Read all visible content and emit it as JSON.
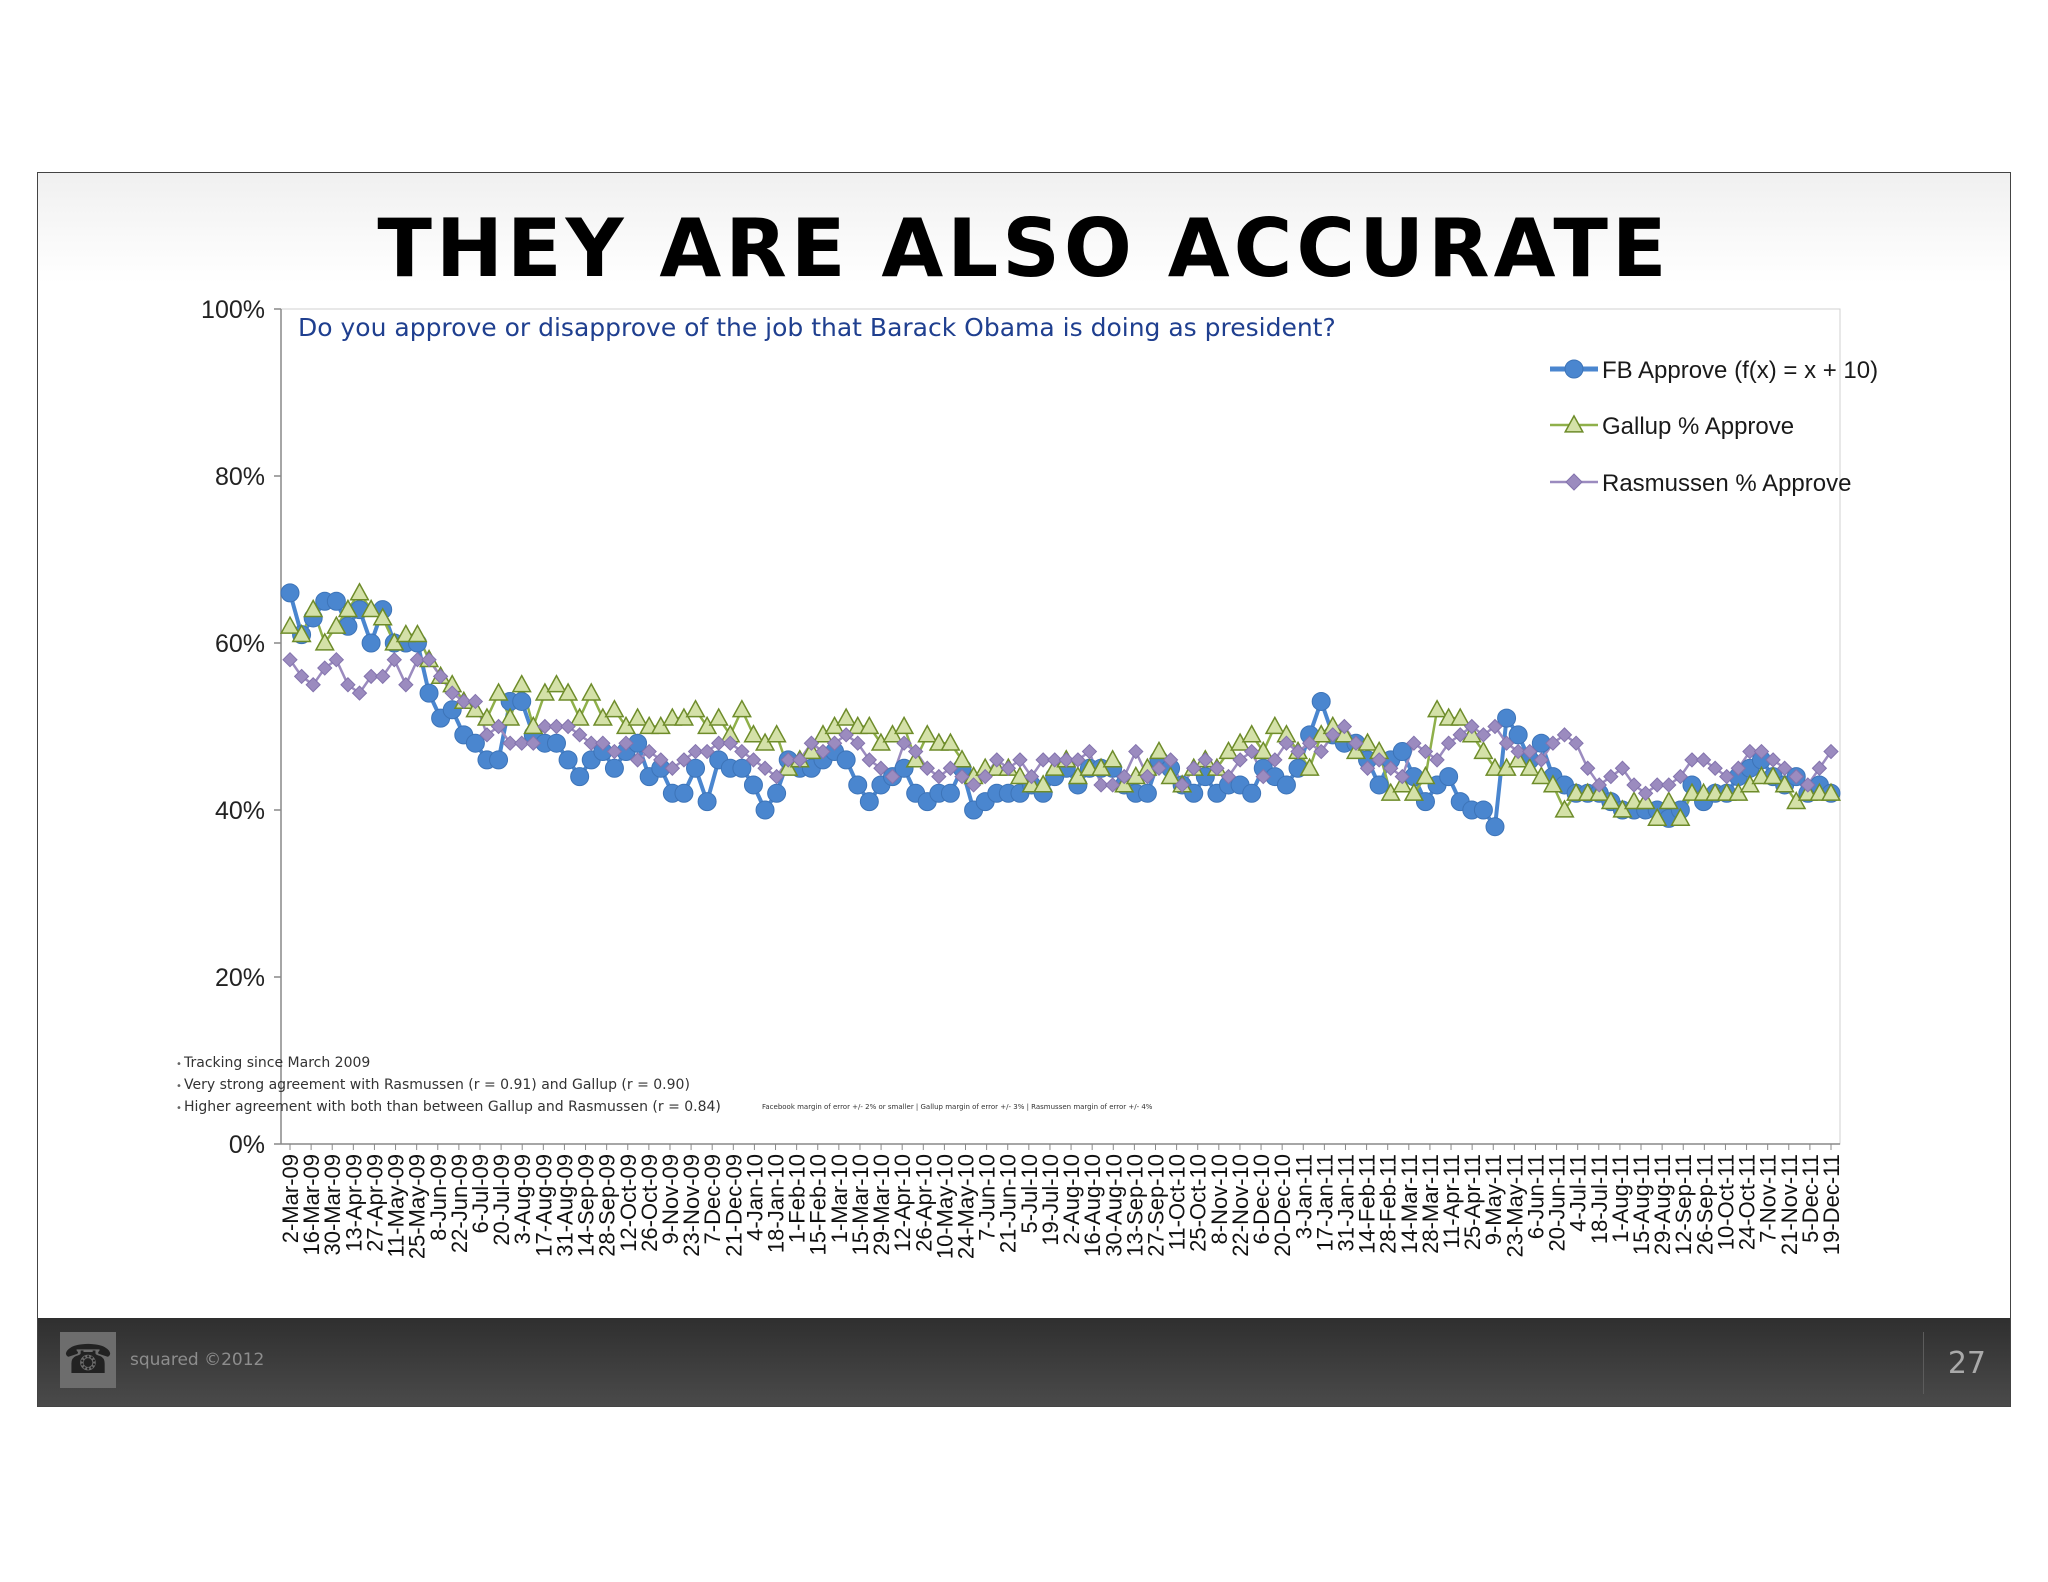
{
  "slide": {
    "title": "THEY ARE ALSO ACCURATE",
    "footer": {
      "logo_icon": "telephone-icon",
      "copyright": "squared ©2012",
      "page_number": "27"
    }
  },
  "chart_data": {
    "type": "line",
    "title": "Do you approve or disapprove of the job that Barack Obama is doing as president?",
    "xlabel": "",
    "ylabel": "",
    "ylim": [
      0,
      100
    ],
    "yticks": [
      "0%",
      "20%",
      "40%",
      "60%",
      "80%",
      "100%"
    ],
    "ytick_values": [
      0,
      20,
      40,
      60,
      80,
      100
    ],
    "grid": false,
    "legend_position": "top-right",
    "x_tick_labels": [
      "2-Mar-09",
      "16-Mar-09",
      "30-Mar-09",
      "13-Apr-09",
      "27-Apr-09",
      "11-May-09",
      "25-May-09",
      "8-Jun-09",
      "22-Jun-09",
      "6-Jul-09",
      "20-Jul-09",
      "3-Aug-09",
      "17-Aug-09",
      "31-Aug-09",
      "14-Sep-09",
      "28-Sep-09",
      "12-Oct-09",
      "26-Oct-09",
      "9-Nov-09",
      "23-Nov-09",
      "7-Dec-09",
      "21-Dec-09",
      "4-Jan-10",
      "18-Jan-10",
      "1-Feb-10",
      "15-Feb-10",
      "1-Mar-10",
      "15-Mar-10",
      "29-Mar-10",
      "12-Apr-10",
      "26-Apr-10",
      "10-May-10",
      "24-May-10",
      "7-Jun-10",
      "21-Jun-10",
      "5-Jul-10",
      "19-Jul-10",
      "2-Aug-10",
      "16-Aug-10",
      "30-Aug-10",
      "13-Sep-10",
      "27-Sep-10",
      "11-Oct-10",
      "25-Oct-10",
      "8-Nov-10",
      "22-Nov-10",
      "6-Dec-10",
      "20-Dec-10",
      "3-Jan-11",
      "17-Jan-11",
      "31-Jan-11",
      "14-Feb-11",
      "28-Feb-11",
      "14-Mar-11",
      "28-Mar-11",
      "11-Apr-11",
      "25-Apr-11",
      "9-May-11",
      "23-May-11",
      "6-Jun-11",
      "20-Jun-11",
      "4-Jul-11",
      "18-Jul-11",
      "1-Aug-11",
      "15-Aug-11",
      "29-Aug-11",
      "12-Sep-11",
      "26-Sep-11",
      "10-Oct-11",
      "24-Oct-11",
      "7-Nov-11",
      "21-Nov-11",
      "5-Dec-11",
      "19-Dec-11"
    ],
    "series": [
      {
        "name": "FB Approve (f(x) = x + 10)",
        "color": "#4a86cf",
        "marker": "circle",
        "values": [
          66,
          61,
          63,
          65,
          65,
          62,
          64,
          60,
          64,
          60,
          60,
          60,
          54,
          51,
          52,
          49,
          48,
          46,
          46,
          53,
          53,
          49,
          48,
          48,
          46,
          44,
          46,
          47,
          45,
          47,
          48,
          44,
          45,
          42,
          42,
          45,
          41,
          46,
          45,
          45,
          43,
          40,
          42,
          46,
          45,
          45,
          46,
          47,
          46,
          43,
          41,
          43,
          44,
          45,
          42,
          41,
          42,
          42,
          45,
          40,
          41,
          42,
          42,
          42,
          43,
          42,
          44,
          45,
          43,
          45,
          45,
          45,
          43,
          42,
          42,
          46,
          45,
          43,
          42,
          44,
          42,
          43,
          43,
          42,
          45,
          44,
          43,
          45,
          49,
          53,
          49,
          48,
          48,
          46,
          43,
          46,
          47,
          44,
          41,
          43,
          44,
          41,
          40,
          40,
          38,
          51,
          49,
          46,
          48,
          44,
          43,
          42,
          42,
          42,
          41,
          40,
          40,
          40,
          40,
          39,
          40,
          43,
          41,
          42,
          42,
          44,
          45,
          46,
          44,
          43,
          44,
          42,
          43,
          42
        ]
      },
      {
        "name": "Gallup % Approve",
        "color": "#8fb04a",
        "marker": "triangle",
        "values": [
          62,
          61,
          64,
          60,
          62,
          64,
          66,
          64,
          63,
          60,
          61,
          61,
          58,
          56,
          55,
          53,
          52,
          51,
          54,
          51,
          55,
          50,
          54,
          55,
          54,
          51,
          54,
          51,
          52,
          50,
          51,
          50,
          50,
          51,
          51,
          52,
          50,
          51,
          49,
          52,
          49,
          48,
          49,
          45,
          46,
          47,
          49,
          50,
          51,
          50,
          50,
          48,
          49,
          50,
          46,
          49,
          48,
          48,
          46,
          44,
          45,
          45,
          45,
          44,
          43,
          43,
          45,
          46,
          44,
          45,
          45,
          46,
          43,
          44,
          45,
          47,
          44,
          43,
          45,
          46,
          45,
          47,
          48,
          49,
          47,
          50,
          49,
          47,
          45,
          49,
          50,
          49,
          47,
          48,
          47,
          42,
          43,
          42,
          44,
          52,
          51,
          51,
          49,
          47,
          45,
          45,
          46,
          45,
          44,
          43,
          40,
          42,
          42,
          42,
          41,
          40,
          41,
          41,
          39,
          41,
          39,
          42,
          42,
          42,
          42,
          42,
          43,
          44,
          44,
          43,
          41,
          42,
          42,
          42
        ]
      },
      {
        "name": "Rasmussen % Approve",
        "color": "#9b8bbf",
        "marker": "diamond",
        "values": [
          58,
          56,
          55,
          57,
          58,
          55,
          54,
          56,
          56,
          58,
          55,
          58,
          58,
          56,
          54,
          53,
          53,
          49,
          50,
          48,
          48,
          48,
          50,
          50,
          50,
          49,
          48,
          48,
          47,
          48,
          46,
          47,
          46,
          45,
          46,
          47,
          47,
          48,
          48,
          47,
          46,
          45,
          44,
          46,
          46,
          48,
          47,
          48,
          49,
          48,
          46,
          45,
          44,
          48,
          47,
          45,
          44,
          45,
          44,
          43,
          44,
          46,
          45,
          46,
          44,
          46,
          46,
          46,
          46,
          47,
          43,
          43,
          44,
          47,
          44,
          45,
          46,
          43,
          45,
          46,
          45,
          44,
          46,
          47,
          44,
          46,
          48,
          47,
          48,
          47,
          49,
          50,
          48,
          45,
          46,
          45,
          44,
          48,
          47,
          46,
          48,
          49,
          50,
          49,
          50,
          48,
          47,
          47,
          46,
          48,
          49,
          48,
          45,
          43,
          44,
          45,
          43,
          42,
          43,
          43,
          44,
          46,
          46,
          45,
          44,
          45,
          47,
          47,
          46,
          45,
          44,
          43,
          45,
          47
        ]
      }
    ],
    "annotations": {
      "bullets": [
        "Tracking since March 2009",
        "Very strong agreement with Rasmussen (r = 0.91) and Gallup (r = 0.90)",
        "Higher agreement with both than between Gallup and Rasmussen (r =  0.84)"
      ],
      "margin_note": "Facebook margin of error +/- 2% or smaller | Gallup margin of error +/- 3% | Rasmussen margin of error +/- 4%"
    }
  }
}
